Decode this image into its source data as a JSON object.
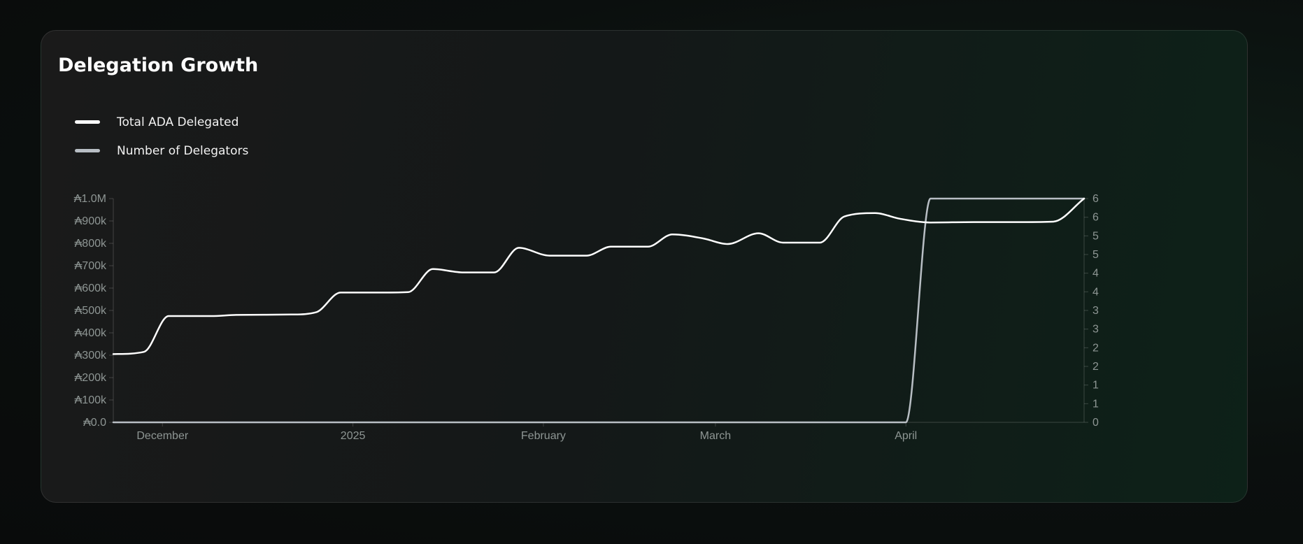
{
  "chart_data": {
    "type": "line",
    "title": "Delegation Growth",
    "x_tick_labels": [
      "December",
      "2025",
      "February",
      "March",
      "April"
    ],
    "y_left_tick_labels": [
      "₳0.0",
      "₳100k",
      "₳200k",
      "₳300k",
      "₳400k",
      "₳500k",
      "₳600k",
      "₳700k",
      "₳800k",
      "₳900k",
      "₳1.0M"
    ],
    "y_right_tick_labels": [
      "0",
      "1",
      "1",
      "2",
      "2",
      "3",
      "3",
      "4",
      "4",
      "5",
      "5",
      "6",
      "6"
    ],
    "ylim_left": [
      0,
      1000000
    ],
    "ylim_right": [
      0,
      6
    ],
    "xlim": [
      "2024-11-23",
      "2025-04-30"
    ],
    "legend_position": "top-left",
    "grid": false,
    "series": [
      {
        "name": "Total ADA Delegated",
        "axis": "left",
        "color": "#ffffff",
        "points": [
          [
            "2024-11-23",
            305000
          ],
          [
            "2024-11-28",
            315000
          ],
          [
            "2024-12-02",
            475000
          ],
          [
            "2024-12-09",
            475000
          ],
          [
            "2024-12-13",
            480000
          ],
          [
            "2024-12-22",
            482000
          ],
          [
            "2024-12-26",
            492000
          ],
          [
            "2024-12-30",
            580000
          ],
          [
            "2025-01-06",
            580000
          ],
          [
            "2025-01-10",
            582000
          ],
          [
            "2025-01-14",
            685000
          ],
          [
            "2025-01-19",
            670000
          ],
          [
            "2025-01-24",
            670000
          ],
          [
            "2025-01-28",
            780000
          ],
          [
            "2025-02-02",
            745000
          ],
          [
            "2025-02-08",
            745000
          ],
          [
            "2025-02-12",
            785000
          ],
          [
            "2025-02-18",
            785000
          ],
          [
            "2025-02-22",
            840000
          ],
          [
            "2025-02-27",
            822000
          ],
          [
            "2025-03-03",
            797000
          ],
          [
            "2025-03-08",
            845000
          ],
          [
            "2025-03-12",
            803000
          ],
          [
            "2025-03-18",
            803000
          ],
          [
            "2025-03-22",
            920000
          ],
          [
            "2025-03-27",
            935000
          ],
          [
            "2025-03-31",
            910000
          ],
          [
            "2025-04-05",
            893000
          ],
          [
            "2025-04-12",
            895000
          ],
          [
            "2025-04-20",
            895000
          ],
          [
            "2025-04-25",
            897000
          ],
          [
            "2025-04-30",
            1000000
          ]
        ]
      },
      {
        "name": "Number of Delegators",
        "axis": "right",
        "color": "#b8bec4",
        "points": [
          [
            "2024-11-23",
            0
          ],
          [
            "2025-04-01",
            0
          ],
          [
            "2025-04-05",
            6
          ],
          [
            "2025-04-30",
            6
          ]
        ]
      }
    ]
  }
}
